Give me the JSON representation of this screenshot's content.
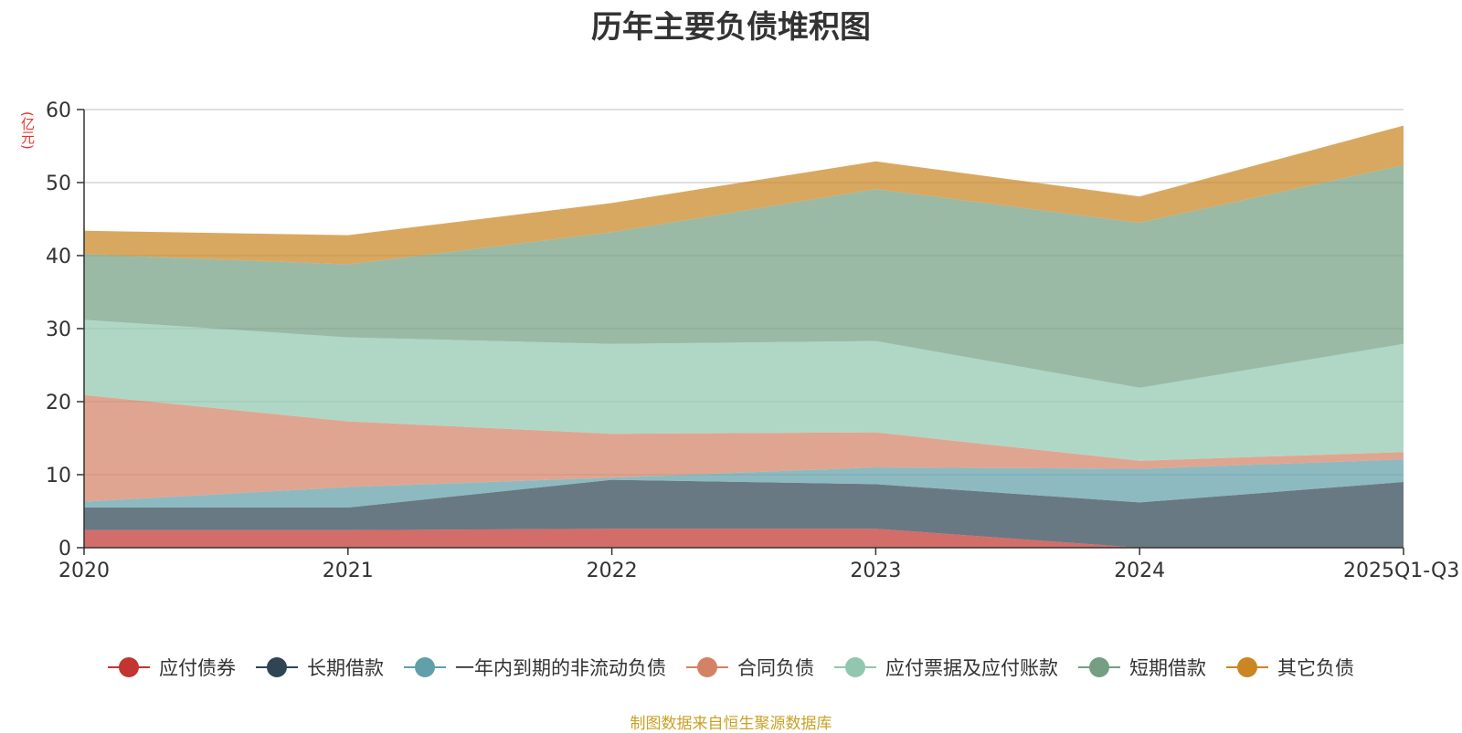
{
  "chart_data": {
    "type": "area",
    "stacked": true,
    "title": "历年主要负债堆积图",
    "ylabel": "(亿元)",
    "ylim": [
      0,
      60
    ],
    "yticks": [
      0,
      10,
      20,
      30,
      40,
      50,
      60
    ],
    "categories": [
      "2020",
      "2021",
      "2022",
      "2023",
      "2024",
      "2025Q1-Q3"
    ],
    "series": [
      {
        "name": "应付债券",
        "color": "#c23531",
        "values": [
          2.4,
          2.4,
          2.6,
          2.6,
          0.0,
          0.0
        ]
      },
      {
        "name": "长期借款",
        "color": "#2f4554",
        "values": [
          3.1,
          3.1,
          6.7,
          6.1,
          6.2,
          9.0
        ]
      },
      {
        "name": "一年内到期的非流动负债",
        "color": "#61a0a8",
        "values": [
          0.8,
          2.8,
          0.3,
          2.3,
          4.6,
          3.1
        ]
      },
      {
        "name": "合同负债",
        "color": "#d48265",
        "values": [
          14.6,
          9.0,
          6.0,
          4.8,
          1.1,
          1.0
        ]
      },
      {
        "name": "应付票据及应付账款",
        "color": "#91c7ae",
        "values": [
          10.3,
          11.5,
          12.3,
          12.5,
          10.0,
          14.8
        ]
      },
      {
        "name": "短期借款",
        "color": "#749f83",
        "values": [
          9.0,
          10.0,
          15.3,
          20.8,
          22.6,
          24.5
        ]
      },
      {
        "name": "其它负债",
        "color": "#ca8622",
        "values": [
          3.2,
          4.0,
          4.0,
          3.8,
          3.6,
          5.4
        ]
      }
    ],
    "legend_position": "bottom",
    "grid": true
  },
  "source_text": "制图数据来自恒生聚源数据库"
}
